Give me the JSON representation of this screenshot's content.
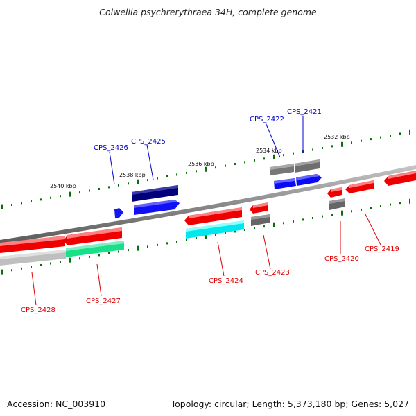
{
  "title": "Colwellia psychrerythraea 34H, complete genome",
  "footer": {
    "accession": "Accession: NC_003910",
    "topology": "Topology: circular; Length: 5,373,180 bp; Genes: 5,027"
  },
  "colors": {
    "forward_gene": "#ff0000",
    "reverse_gene": "#0000ff",
    "label_forward": "#dd0000",
    "label_reverse": "#0000cc",
    "tick": "#0a6e0a",
    "backbone": "#808080"
  },
  "kbp_labels": [
    "2540 kbp",
    "2538 kbp",
    "2536 kbp",
    "2534 kbp",
    "2532 kbp"
  ],
  "genes": [
    {
      "id": "CPS_2426",
      "strand": "reverse"
    },
    {
      "id": "CPS_2425",
      "strand": "reverse"
    },
    {
      "id": "CPS_2422",
      "strand": "reverse"
    },
    {
      "id": "CPS_2421",
      "strand": "reverse"
    },
    {
      "id": "CPS_2428",
      "strand": "forward"
    },
    {
      "id": "CPS_2427",
      "strand": "forward"
    },
    {
      "id": "CPS_2424",
      "strand": "forward"
    },
    {
      "id": "CPS_2423",
      "strand": "forward"
    },
    {
      "id": "CPS_2420",
      "strand": "forward"
    },
    {
      "id": "CPS_2419",
      "strand": "forward"
    }
  ]
}
